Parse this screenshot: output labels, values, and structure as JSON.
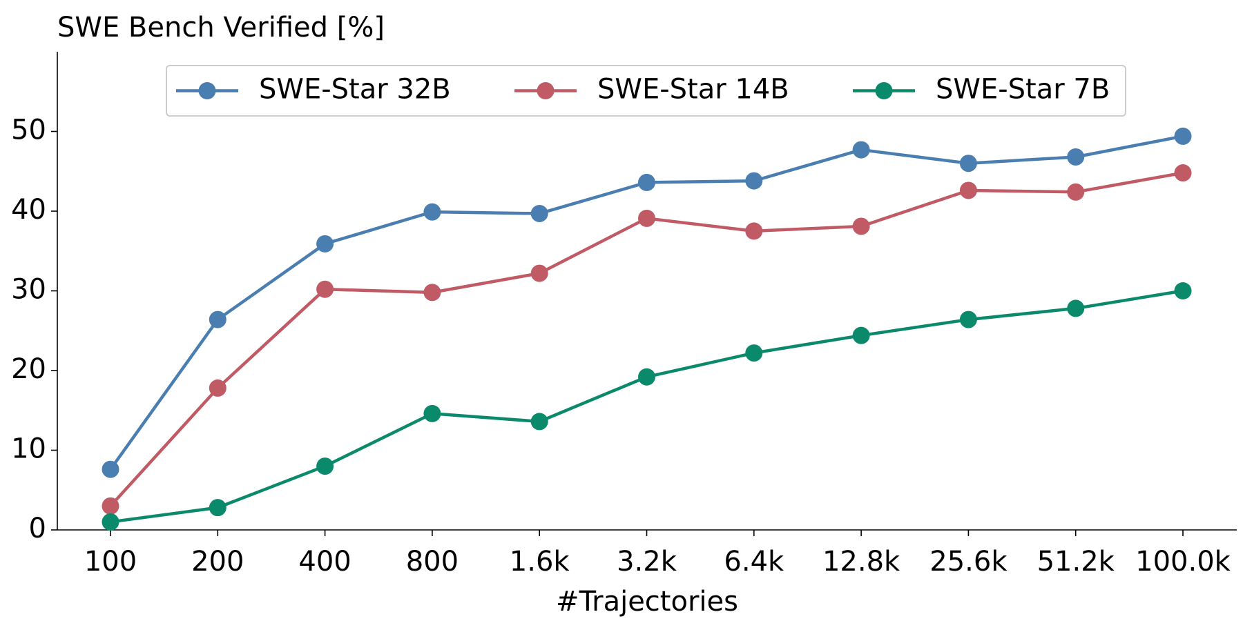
{
  "chart_data": {
    "type": "line",
    "y_label": "SWE Bench Verified [%]",
    "x_label": "#Trajectories",
    "categories": [
      "100",
      "200",
      "400",
      "800",
      "1.6k",
      "3.2k",
      "6.4k",
      "12.8k",
      "25.6k",
      "51.2k",
      "100.0k"
    ],
    "series": [
      {
        "name": "SWE-Star 32B",
        "color": "#4a7eb0",
        "values": [
          7.6,
          26.4,
          35.9,
          39.9,
          39.7,
          43.6,
          43.8,
          47.7,
          46.0,
          46.8,
          49.4
        ]
      },
      {
        "name": "SWE-Star 14B",
        "color": "#c05b66",
        "values": [
          3.0,
          17.8,
          30.2,
          29.8,
          32.2,
          39.1,
          37.5,
          38.1,
          42.6,
          42.4,
          44.8
        ]
      },
      {
        "name": "SWE-Star 7B",
        "color": "#0b8a6b",
        "values": [
          1.0,
          2.8,
          8.0,
          14.6,
          13.6,
          19.2,
          22.2,
          24.4,
          26.4,
          27.8,
          30.0
        ]
      }
    ],
    "ylim": [
      0,
      60
    ],
    "yticks": [
      0,
      10,
      20,
      30,
      40,
      50
    ],
    "grid": false,
    "legend": "upper center"
  }
}
